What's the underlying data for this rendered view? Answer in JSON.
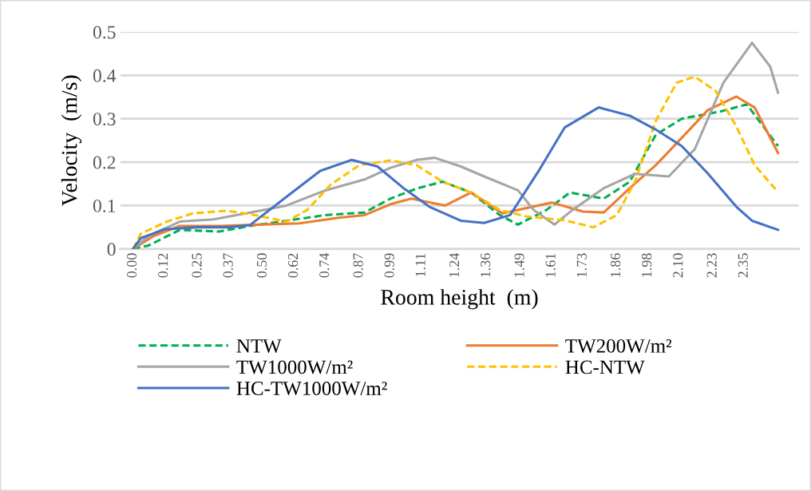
{
  "chart_data": {
    "type": "line",
    "xlabel": "Room height  (m)",
    "ylabel": "Velocity  (m/s)",
    "xlim": [
      -0.05,
      2.56
    ],
    "ylim": [
      0,
      0.5
    ],
    "xticks": [
      {
        "value": 0,
        "label": "0.00"
      },
      {
        "value": 0.12,
        "label": "0.12"
      },
      {
        "value": 0.25,
        "label": "0.25"
      },
      {
        "value": 0.37,
        "label": "0.37"
      },
      {
        "value": 0.5,
        "label": "0.50"
      },
      {
        "value": 0.62,
        "label": "0.62"
      },
      {
        "value": 0.74,
        "label": "0.74"
      },
      {
        "value": 0.87,
        "label": "0.87"
      },
      {
        "value": 0.99,
        "label": "0.99"
      },
      {
        "value": 1.11,
        "label": "1.11"
      },
      {
        "value": 1.24,
        "label": "1.24"
      },
      {
        "value": 1.36,
        "label": "1.36"
      },
      {
        "value": 1.49,
        "label": "1.49"
      },
      {
        "value": 1.61,
        "label": "1.61"
      },
      {
        "value": 1.73,
        "label": "1.73"
      },
      {
        "value": 1.86,
        "label": "1.86"
      },
      {
        "value": 1.98,
        "label": "1.98"
      },
      {
        "value": 2.1,
        "label": "2.10"
      },
      {
        "value": 2.23,
        "label": "2.23"
      },
      {
        "value": 2.35,
        "label": "2.35"
      }
    ],
    "yticks": [
      0,
      0.1,
      0.2,
      0.3,
      0.4,
      0.5
    ],
    "grid": "y",
    "legend": "bottom",
    "series": [
      {
        "name": "NTW",
        "color": "#00b050",
        "line_style": "dashed",
        "x": [
          0,
          0.06,
          0.18,
          0.33,
          0.45,
          0.59,
          0.74,
          0.89,
          0.99,
          1.09,
          1.19,
          1.3,
          1.41,
          1.48,
          1.59,
          1.68,
          1.81,
          1.91,
          2.01,
          2.11,
          2.26,
          2.36,
          2.48
        ],
        "values": [
          0,
          0.008,
          0.044,
          0.04,
          0.053,
          0.065,
          0.078,
          0.084,
          0.116,
          0.139,
          0.155,
          0.13,
          0.078,
          0.056,
          0.09,
          0.13,
          0.116,
          0.155,
          0.263,
          0.3,
          0.317,
          0.333,
          0.237
        ]
      },
      {
        "name": "TW200W/m²",
        "color": "#ed7d31",
        "line_style": "solid",
        "x": [
          0,
          0.08,
          0.18,
          0.33,
          0.48,
          0.64,
          0.79,
          0.89,
          0.99,
          1.07,
          1.2,
          1.3,
          1.42,
          1.61,
          1.73,
          1.81,
          1.91,
          2.01,
          2.11,
          2.21,
          2.32,
          2.39,
          2.48
        ],
        "values": [
          0,
          0.03,
          0.053,
          0.053,
          0.056,
          0.059,
          0.072,
          0.078,
          0.103,
          0.116,
          0.1,
          0.13,
          0.082,
          0.107,
          0.086,
          0.084,
          0.14,
          0.193,
          0.256,
          0.32,
          0.351,
          0.326,
          0.221
        ]
      },
      {
        "name": "TW1000W/m²",
        "color": "#a5a5a5",
        "line_style": "solid",
        "x": [
          0,
          0.06,
          0.18,
          0.31,
          0.45,
          0.59,
          0.74,
          0.89,
          0.99,
          1.09,
          1.16,
          1.26,
          1.35,
          1.48,
          1.54,
          1.62,
          1.69,
          1.81,
          1.93,
          2.06,
          2.16,
          2.27,
          2.38,
          2.45,
          2.48
        ],
        "values": [
          0,
          0.03,
          0.063,
          0.068,
          0.084,
          0.1,
          0.135,
          0.16,
          0.187,
          0.205,
          0.21,
          0.19,
          0.167,
          0.135,
          0.09,
          0.056,
          0.09,
          0.14,
          0.173,
          0.167,
          0.23,
          0.383,
          0.475,
          0.42,
          0.36
        ]
      },
      {
        "name": "HC-NTW",
        "color": "#ffc000",
        "line_style": "dashed",
        "x": [
          0,
          0.03,
          0.13,
          0.23,
          0.36,
          0.47,
          0.59,
          0.67,
          0.76,
          0.87,
          0.99,
          1.09,
          1.19,
          1.3,
          1.41,
          1.51,
          1.66,
          1.77,
          1.86,
          1.93,
          2.01,
          2.09,
          2.16,
          2.24,
          2.32,
          2.39,
          2.48
        ],
        "values": [
          0,
          0.035,
          0.063,
          0.082,
          0.088,
          0.078,
          0.063,
          0.09,
          0.148,
          0.193,
          0.204,
          0.193,
          0.155,
          0.13,
          0.09,
          0.075,
          0.066,
          0.05,
          0.078,
          0.155,
          0.295,
          0.383,
          0.397,
          0.364,
          0.282,
          0.193,
          0.131
        ]
      },
      {
        "name": "HC-TW1000W/m²",
        "color": "#4472c4",
        "line_style": "solid",
        "x": [
          0,
          0.03,
          0.12,
          0.25,
          0.37,
          0.45,
          0.59,
          0.72,
          0.84,
          0.94,
          1.04,
          1.14,
          1.26,
          1.35,
          1.45,
          1.56,
          1.66,
          1.79,
          1.91,
          2.01,
          2.11,
          2.21,
          2.32,
          2.38,
          2.48
        ],
        "values": [
          0,
          0.025,
          0.045,
          0.05,
          0.05,
          0.055,
          0.12,
          0.18,
          0.205,
          0.19,
          0.14,
          0.097,
          0.065,
          0.06,
          0.078,
          0.18,
          0.28,
          0.326,
          0.307,
          0.275,
          0.237,
          0.174,
          0.097,
          0.065,
          0.044
        ]
      }
    ]
  }
}
